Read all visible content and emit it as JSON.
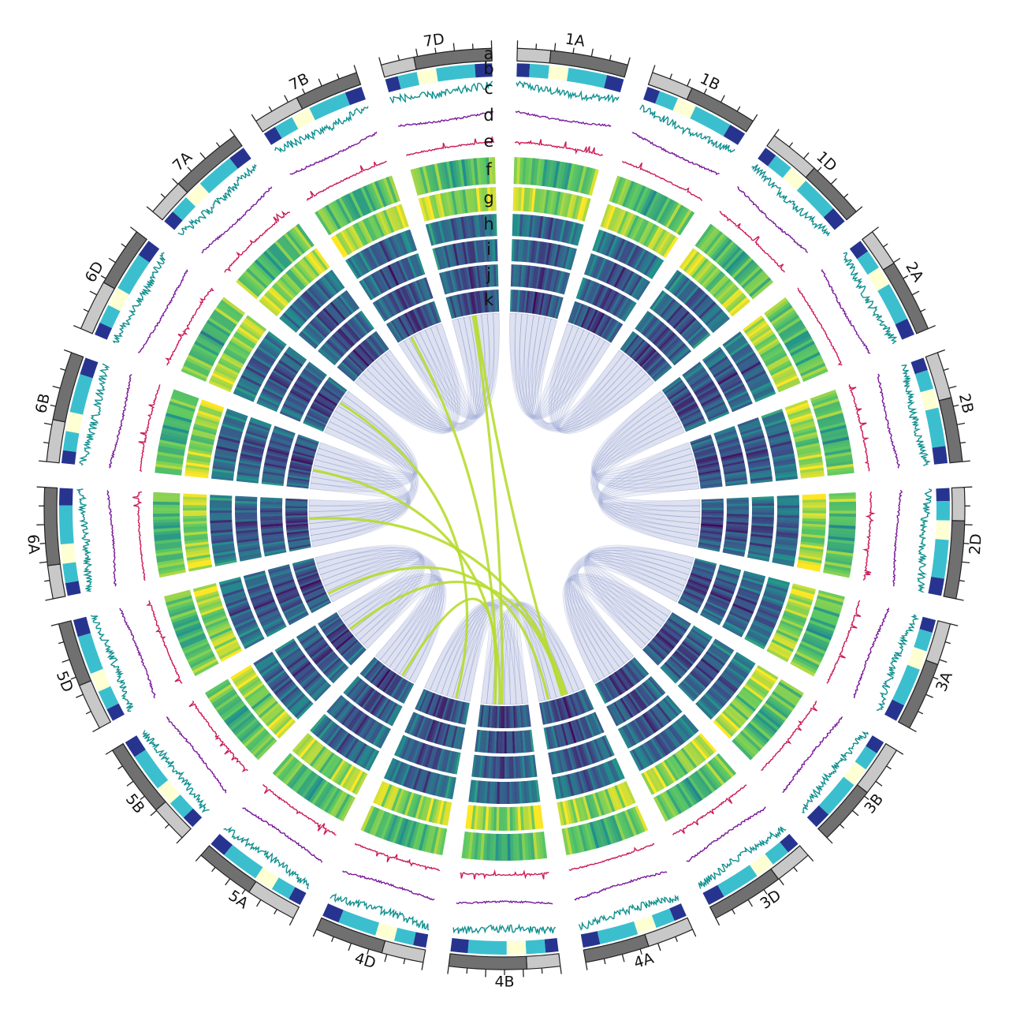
{
  "colors": {
    "ideogram_light": "#c8c8c8",
    "ideogram_dark": "#707070",
    "compartment": [
      "#27348f",
      "#3bbfcf",
      "#ffffd4",
      "#3bbfcf",
      "#27348f"
    ],
    "line_c": "#139090",
    "line_d": "#7a1a9a",
    "line_e": "#cc1a5a",
    "links_homeolog": "#8e9ed0",
    "links_special": "#b7dc2e",
    "heat_low": "#440154",
    "heat_mid": "#21918c",
    "heat_high": "#fde725"
  },
  "track_labels": [
    "a",
    "b",
    "c",
    "d",
    "e",
    "f",
    "g",
    "h",
    "i",
    "j",
    "k"
  ],
  "chromosomes": [
    {
      "name": "1A",
      "size": 594
    },
    {
      "name": "1B",
      "size": 690
    },
    {
      "name": "1D",
      "size": 495
    },
    {
      "name": "2A",
      "size": 780
    },
    {
      "name": "2B",
      "size": 801
    },
    {
      "name": "2D",
      "size": 651
    },
    {
      "name": "3A",
      "size": 750
    },
    {
      "name": "3B",
      "size": 830
    },
    {
      "name": "3D",
      "size": 615
    },
    {
      "name": "4A",
      "size": 744
    },
    {
      "name": "4B",
      "size": 673
    },
    {
      "name": "4D",
      "size": 509
    },
    {
      "name": "5A",
      "size": 709
    },
    {
      "name": "5B",
      "size": 713
    },
    {
      "name": "5D",
      "size": 566
    },
    {
      "name": "6A",
      "size": 618
    },
    {
      "name": "6B",
      "size": 720
    },
    {
      "name": "6D",
      "size": 473
    },
    {
      "name": "7A",
      "size": 736
    },
    {
      "name": "7B",
      "size": 750
    },
    {
      "name": "7D",
      "size": 638
    }
  ]
}
